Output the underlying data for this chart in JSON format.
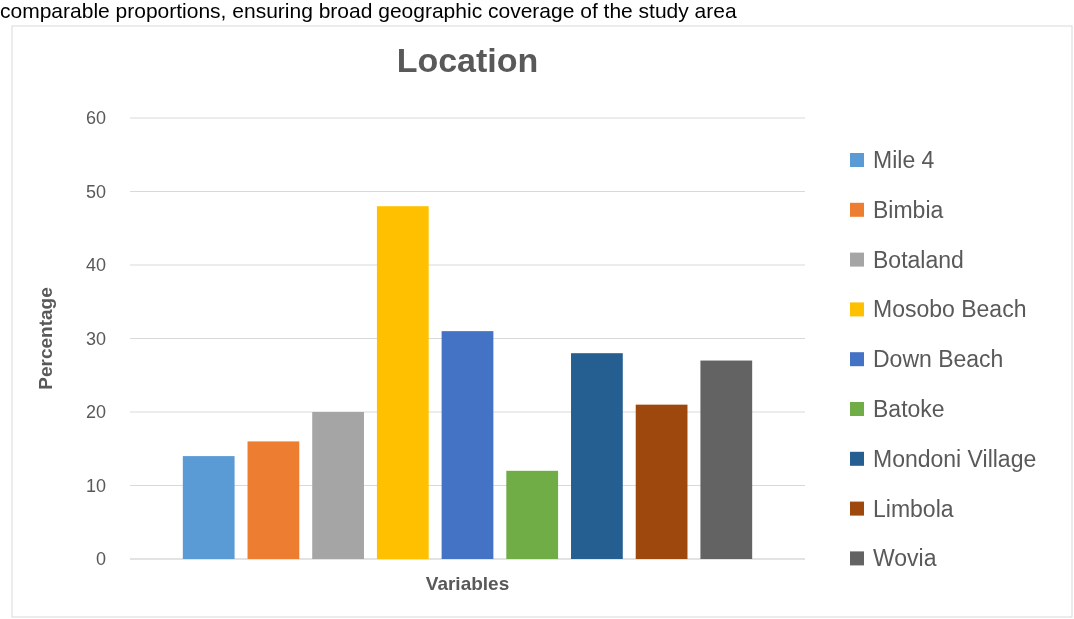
{
  "chart_data": {
    "type": "bar",
    "title": "Location",
    "ylabel": "Percentage",
    "xlabel": "Variables",
    "annotations": [
      "comparable proportions, ensuring broad geographic coverage of the study area"
    ],
    "categories": [
      null
    ],
    "series": [
      {
        "name": "Mile 4",
        "color": "#5b9bd5",
        "values": [
          14
        ]
      },
      {
        "name": "Bimbia",
        "color": "#ed7d31",
        "values": [
          16
        ]
      },
      {
        "name": "Botaland",
        "color": "#a5a5a5",
        "values": [
          20
        ]
      },
      {
        "name": "Mosobo Beach",
        "color": "#ffc000",
        "values": [
          48
        ]
      },
      {
        "name": "Down Beach",
        "color": "#4472c4",
        "values": [
          31
        ]
      },
      {
        "name": "Batoke",
        "color": "#70ad47",
        "values": [
          12
        ]
      },
      {
        "name": "Mondoni Village",
        "color": "#255e91",
        "values": [
          28
        ]
      },
      {
        "name": "Limbola",
        "color": "#9e480e",
        "values": [
          21
        ]
      },
      {
        "name": "Wovia",
        "color": "#636363",
        "values": [
          27
        ]
      }
    ],
    "ylim": [
      0,
      60
    ],
    "yticks": [
      0,
      10,
      20,
      30,
      40,
      50,
      60
    ],
    "grid": "y",
    "legend": "right"
  }
}
